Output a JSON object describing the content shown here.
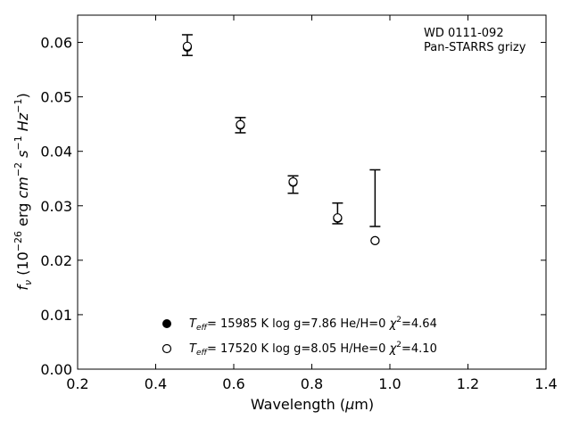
{
  "chart_data": {
    "type": "scatter",
    "annotations": [
      "WD 0111-092",
      "Pan-STARRS grizy"
    ],
    "xlabel": "Wavelength (μm)",
    "ylabel": "f_ν (10^−26 erg cm^−2 s^−1 Hz^−1)",
    "xlim": [
      0.2,
      1.4
    ],
    "ylim": [
      0.0,
      0.065
    ],
    "xticks": [
      "0.2",
      "0.4",
      "0.6",
      "0.8",
      "1.0",
      "1.2",
      "1.4"
    ],
    "yticks": [
      "0.00",
      "0.01",
      "0.02",
      "0.03",
      "0.04",
      "0.05",
      "0.06"
    ],
    "grid": false,
    "legend_position": "bottom-center",
    "errorbars": [
      {
        "x": 0.481,
        "y": 0.0595,
        "err": 0.0019
      },
      {
        "x": 0.617,
        "y": 0.0448,
        "err": 0.0014
      },
      {
        "x": 0.752,
        "y": 0.0339,
        "err": 0.0016
      },
      {
        "x": 0.866,
        "y": 0.0286,
        "err": 0.0019
      },
      {
        "x": 0.962,
        "y": 0.0314,
        "err": 0.0052
      }
    ],
    "series": [
      {
        "name": "T_eff= 15985 K  log g=7.86  He/H=0  χ²=4.64",
        "marker": "filled-circle",
        "x": [
          0.481,
          0.617,
          0.752,
          0.866,
          0.962
        ],
        "y": [
          0.0591,
          0.0448,
          0.0343,
          0.0277,
          0.0236
        ]
      },
      {
        "name": "T_eff= 17520 K  log g=8.05  H/He=0  χ²=4.10",
        "marker": "open-circle",
        "x": [
          0.481,
          0.617,
          0.752,
          0.866,
          0.962
        ],
        "y": [
          0.0593,
          0.0449,
          0.0344,
          0.0278,
          0.0236
        ]
      }
    ],
    "legend": [
      {
        "teff_value": "= 15985 K  log g=7.86  He/H=0  ",
        "chi_value": "=4.64"
      },
      {
        "teff_value": "= 17520 K  log g=8.05  H/He=0  ",
        "chi_value": "=4.10"
      }
    ],
    "colors": {
      "filled": "#000000",
      "open_fill": "#ffffff",
      "stroke": "#000000"
    }
  }
}
